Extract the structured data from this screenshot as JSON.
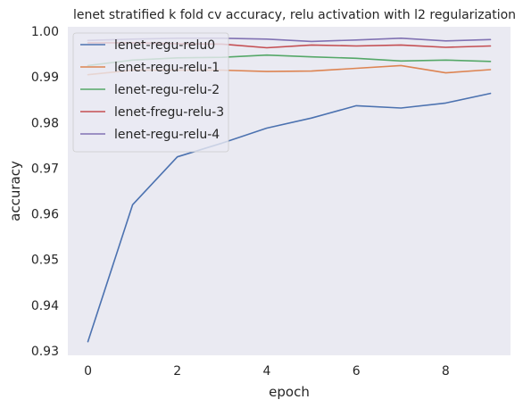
{
  "chart_data": {
    "type": "line",
    "title": "lenet stratified k fold cv accuracy, relu activation with l2 regularization",
    "xlabel": "epoch",
    "ylabel": "accuracy",
    "xlim": [
      -0.45,
      9.45
    ],
    "ylim": [
      0.929,
      1.001
    ],
    "xticks": [
      0,
      2,
      4,
      6,
      8
    ],
    "yticks": [
      0.93,
      0.94,
      0.95,
      0.96,
      0.97,
      0.98,
      0.99,
      1.0
    ],
    "ytick_labels": [
      "0.93",
      "0.94",
      "0.95",
      "0.96",
      "0.97",
      "0.98",
      "0.99",
      "1.00"
    ],
    "grid": false,
    "background": "#eaeaf2",
    "legend_position": "upper-left",
    "x": [
      0,
      1,
      2,
      3,
      4,
      5,
      6,
      7,
      8,
      9
    ],
    "series": [
      {
        "name": "lenet-regu-relu0",
        "color": "#4c72b0",
        "values": [
          0.932,
          0.962,
          0.9725,
          0.9755,
          0.9788,
          0.981,
          0.9837,
          0.9832,
          0.9843,
          0.9864
        ]
      },
      {
        "name": "lenet-regu-relu-1",
        "color": "#dd8452",
        "values": [
          0.9905,
          0.9915,
          0.9915,
          0.9915,
          0.9912,
          0.9913,
          0.9919,
          0.9925,
          0.9909,
          0.9916
        ]
      },
      {
        "name": "lenet-regu-relu-2",
        "color": "#55a868",
        "values": [
          0.9925,
          0.9937,
          0.9942,
          0.9943,
          0.9948,
          0.9944,
          0.9941,
          0.9935,
          0.9937,
          0.9934
        ]
      },
      {
        "name": "lenet-fregu-relu-3",
        "color": "#c44e52",
        "values": [
          0.9975,
          0.9975,
          0.9973,
          0.9972,
          0.9964,
          0.997,
          0.9968,
          0.997,
          0.9965,
          0.9968
        ]
      },
      {
        "name": "lenet-regu-relu-4",
        "color": "#8172b3",
        "values": [
          0.998,
          0.9983,
          0.9985,
          0.9985,
          0.9983,
          0.9978,
          0.9981,
          0.9985,
          0.9979,
          0.9982
        ]
      }
    ]
  }
}
